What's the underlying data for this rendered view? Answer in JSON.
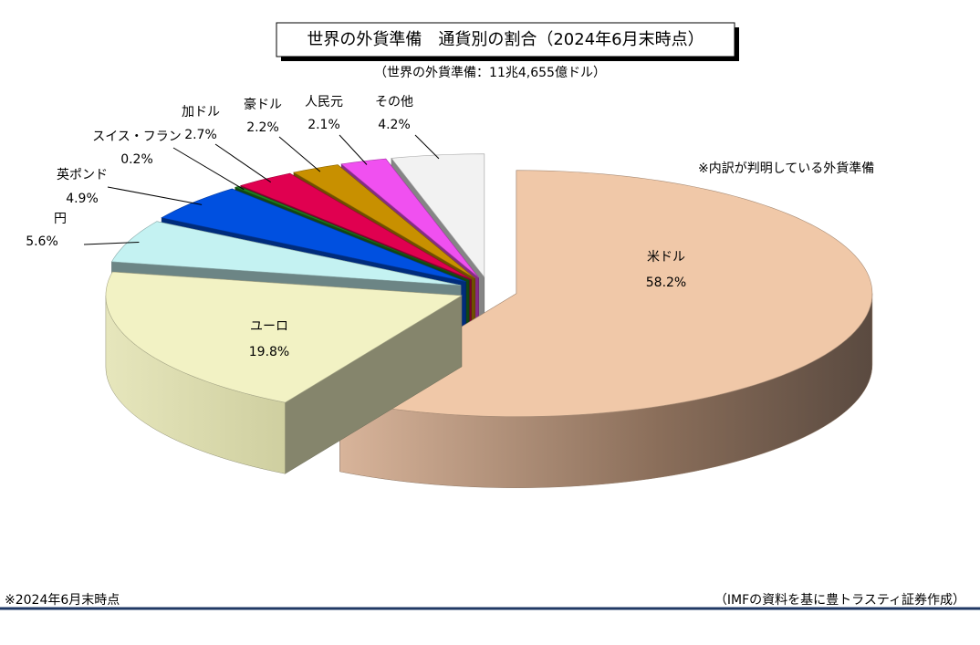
{
  "chart_data": {
    "type": "pie3d",
    "title": "世界の外貨準備　通貨別の割合（2024年6月末時点）",
    "subtitle": "（世界の外貨準備：11兆4,655億ドル）",
    "annotation": "※内訳が判明している外貨準備",
    "footnote": "※2024年6月末時点",
    "source": "（IMFの資料を基に豊トラスティ証券作成）",
    "categories": [
      "米ドル",
      "ユーロ",
      "円",
      "英ポンド",
      "スイス・フラン",
      "加ドル",
      "豪ドル",
      "人民元",
      "その他"
    ],
    "values": [
      58.2,
      19.8,
      5.6,
      4.9,
      0.2,
      2.7,
      2.2,
      2.1,
      4.2
    ],
    "value_labels": [
      "58.2%",
      "19.8%",
      "5.6%",
      "4.9%",
      "0.2%",
      "2.7%",
      "2.2%",
      "2.1%",
      "4.2%"
    ],
    "colors": [
      "#f0c8a8",
      "#f2f2c4",
      "#c4f2f2",
      "#0050e0",
      "#208020",
      "#e00050",
      "#c89000",
      "#f050f0",
      "#f2f2f2"
    ]
  }
}
